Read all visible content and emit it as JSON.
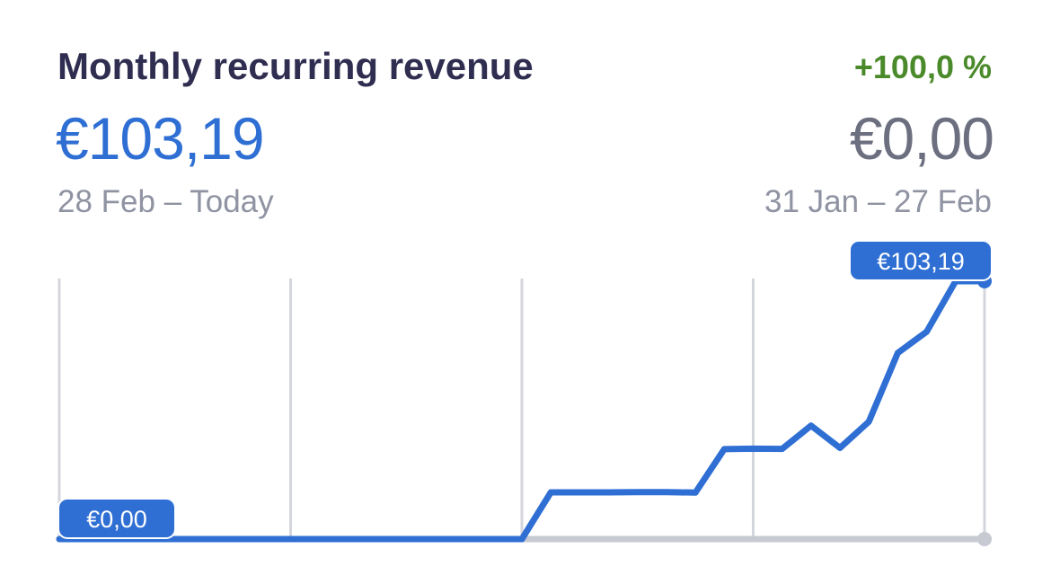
{
  "metric": {
    "title": "Monthly recurring revenue",
    "change": "+100,0 %",
    "current_value": "€103,19",
    "current_period": "28 Feb – Today",
    "previous_value": "€0,00",
    "previous_period": "31 Jan – 27 Feb"
  },
  "colors": {
    "title": "#2f2d50",
    "current": "#2f6fd4",
    "previous": "#6c6f7f",
    "change_positive": "#4a8a2a",
    "period_text": "#8f93a2",
    "gridline": "#d4d6de",
    "baseline": "#c7c9d3",
    "bubble_text": "#ffffff"
  },
  "chart_data": {
    "type": "line",
    "ylim": [
      0,
      103.19
    ],
    "grid": "vertical",
    "series": [
      {
        "values": [
          0,
          0,
          0,
          0,
          0,
          0,
          0,
          0,
          0,
          0,
          0,
          0,
          0,
          0,
          0,
          0,
          0,
          18.7,
          18.7,
          18.7,
          18.8,
          18.8,
          18.6,
          36.0,
          36.2,
          36.1,
          45.4,
          36.5,
          47.0,
          74.5,
          83.0,
          103.19,
          103.19
        ]
      },
      {
        "values": [
          0,
          0,
          0,
          0,
          0,
          0,
          0,
          0,
          0,
          0,
          0,
          0,
          0,
          0,
          0,
          0,
          0,
          0,
          0,
          0,
          0,
          0,
          0,
          0,
          0,
          0,
          0,
          0,
          0,
          0,
          0,
          0,
          0
        ]
      }
    ],
    "annotations": {
      "start_label": "€0,00",
      "end_label": "€103,19"
    }
  }
}
